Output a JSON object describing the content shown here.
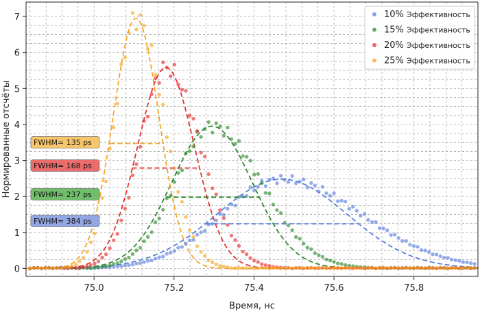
{
  "chart_data": {
    "type": "scatter",
    "title": "",
    "xlabel": "Время, нс",
    "ylabel": "Нормированные отсчёты",
    "xlim": [
      74.83,
      75.96
    ],
    "ylim": [
      -0.22,
      7.4
    ],
    "xticks": [
      "75.0",
      "75.2",
      "75.4",
      "75.6",
      "75.8"
    ],
    "xtick_values": [
      75.0,
      75.2,
      75.4,
      75.6,
      75.8
    ],
    "yticks": [
      "0",
      "1",
      "2",
      "3",
      "4",
      "5",
      "6",
      "7"
    ],
    "ytick_values": [
      0,
      1,
      2,
      3,
      4,
      5,
      6,
      7
    ],
    "grid": true,
    "legend_position": "top-right",
    "series": [
      {
        "name": "10% Эффективность",
        "pct": "10%",
        "label": "Эффективность",
        "color": "#5b7fdc",
        "peak": 2.48,
        "center": 75.47,
        "sigma": 0.163,
        "fwhm_label": "FWHM= 384 ps",
        "fwhm_bg": "#93a7e4",
        "fwhm_range": [
          75.28,
          75.66
        ],
        "fwhm_y": 1.24
      },
      {
        "name": "15% Эффективность",
        "pct": "15%",
        "label": "Эффективность",
        "color": "#2e8b2e",
        "peak": 3.95,
        "center": 75.295,
        "sigma": 0.1006,
        "fwhm_label": "FWHM= 237 ps",
        "fwhm_bg": "#6fbf6a",
        "fwhm_range": [
          75.18,
          75.415
        ],
        "fwhm_y": 1.98
      },
      {
        "name": "20% Эффективность",
        "pct": "20%",
        "label": "Эффективность",
        "color": "#e53030",
        "peak": 5.58,
        "center": 75.18,
        "sigma": 0.0713,
        "fwhm_label": "FWHM= 168 ps",
        "fwhm_bg": "#ec6b6b",
        "fwhm_range": [
          75.095,
          75.265
        ],
        "fwhm_y": 2.79
      },
      {
        "name": "25% Эффективность",
        "pct": "25%",
        "label": "Эффективность",
        "color": "#f5a623",
        "peak": 6.95,
        "center": 75.105,
        "sigma": 0.0573,
        "fwhm_label": "FWHM= 135 ps",
        "fwhm_bg": "#f7c56a",
        "fwhm_range": [
          75.04,
          75.175
        ],
        "fwhm_y": 3.47
      }
    ]
  }
}
